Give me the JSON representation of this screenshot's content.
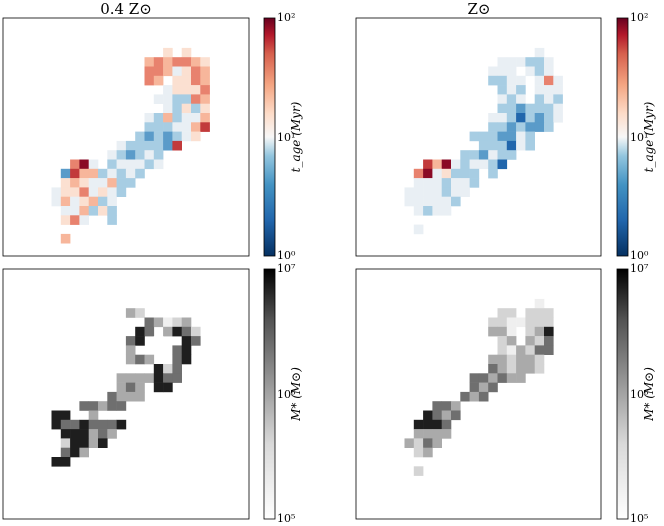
{
  "chart_data": [
    {
      "type": "heatmap",
      "title": "0.4 Z⊙",
      "colormap": "RdBu_r",
      "scale": "log",
      "colorbar": {
        "label": "t_age (Myr)",
        "range": [
          1,
          100
        ],
        "ticks": [
          "10⁰",
          "10¹",
          "10²"
        ]
      },
      "grid": [
        "..........................",
        "..........................",
        "..........................",
        ".................A.A......",
        "...............BCBCCBA....",
        "...............CCBaACB....",
        "...............CB.AACB....",
        ".................aAAAC....",
        "................aabbCB....",
        ".................abAbA....",
        "...............abBbaaB....",
        "...............bbbaaBD....",
        "..............bcbcbaA.....",
        "............abbbbcD.......",
        "...........abcbab.........",
        ".......CEa.baaaba.........",
        "......cDBBbabab...........",
        "......ABAaaBbb............",
        ".....aAACaAab.............",
        ".....aBaABba..............",
        "......aaBbAb..............",
        "......ACa..b..............",
        "..........................",
        "......B...................",
        ".........................."
      ]
    },
    {
      "type": "heatmap",
      "title": "Z⊙",
      "colormap": "RdBu_r",
      "scale": "log",
      "colorbar": {
        "label": "t_age (Myr)",
        "range": [
          1,
          100
        ],
        "ticks": [
          "10⁰",
          "10¹",
          "10²"
        ]
      },
      "grid": [
        "..........................",
        "..........................",
        "..........................",
        "...................a......",
        "...............aaabba.....",
        "..............aaa.aba.....",
        "..............bbaa.aCa....",
        "...............bab.aaa....",
        "...............aba.bab....",
        "...............bbcbbba....",
        "..............aabdbcba....",
        "..............bbcbccb.....",
        "............bbbccab.......",
        ".............bbbdab.......",
        "...........bbcabb.........",
        ".......DBEabaabd..........",
        "......CEaAbbb.b...........",
        "......aaabaab.............",
        ".....aaaabaa..............",
        ".....aaaaab...............",
        "......abaa................",
        "..........................",
        "......a...................",
        "..........................",
        ".........................."
      ]
    },
    {
      "type": "heatmap",
      "title": "",
      "colormap": "Greys",
      "scale": "log",
      "colorbar": {
        "label": "M* (M⊙)",
        "range": [
          100000,
          10000000
        ],
        "ticks": [
          "10⁵",
          "10⁶",
          "10⁷"
        ]
      },
      "grid": [
        "..........................",
        "..........................",
        "..........................",
        "..........................",
        ".............fe...........",
        "...............gfdef......",
        "..............hg.fhge.....",
        ".............gh.c..hg.....",
        ".............f....gh......",
        ".............fgf..gh......",
        "................heg.......",
        "............ffffhgg.......",
        "............fgf.hh........",
        "...........gfff...........",
        "........ggfgg.............",
        ".....hh..f................",
        ".....hgghgggh.............",
        "......hhhfgf..............",
        "......ehhfh...............",
        "......ghf.................",
        ".....hh...................",
        "..........................",
        "..........................",
        "..........................",
        ".........................."
      ]
    },
    {
      "type": "heatmap",
      "title": "",
      "colormap": "Greys",
      "scale": "log",
      "colorbar": {
        "label": "M* (M⊙)",
        "range": [
          100000,
          10000000
        ],
        "ticks": [
          "10⁵",
          "10⁶",
          "10⁷"
        ]
      },
      "grid": [
        "..........................",
        "..........................",
        "..........................",
        "...................d......",
        "...............ee.eee.....",
        "..............eeddeee.....",
        "..............ffd.efh.....",
        "...............ef.feg.....",
        "...............edfegg.....",
        "..............ffeffe......",
        "..............gfeffe......",
        "............ggfgff........",
        "............gfg...........",
        "...........gfg............",
        "........ggf...............",
        ".......hgfg...............",
        "......hhhg................",
        "......ffff................",
        ".....fegf.................",
        "......ef..................",
        "..........................",
        "......e...................",
        "..........................",
        "..........................",
        ".........................."
      ]
    }
  ],
  "palettes": {
    "RdBu_r": {
      "a": "#e9eff4",
      "b": "#a7cde3",
      "c": "#5a9bc9",
      "d": "#2166ac",
      "A": "#fbe0d1",
      "B": "#f7b69b",
      "C": "#e8826e",
      "D": "#c23a3b",
      "E": "#8a0a25"
    },
    "Greys": {
      "c": "#ffffff",
      "d": "#efefef",
      "e": "#d4d4d4",
      "f": "#aaaaaa",
      "g": "#6f6f6f",
      "h": "#1e1e1e"
    }
  }
}
